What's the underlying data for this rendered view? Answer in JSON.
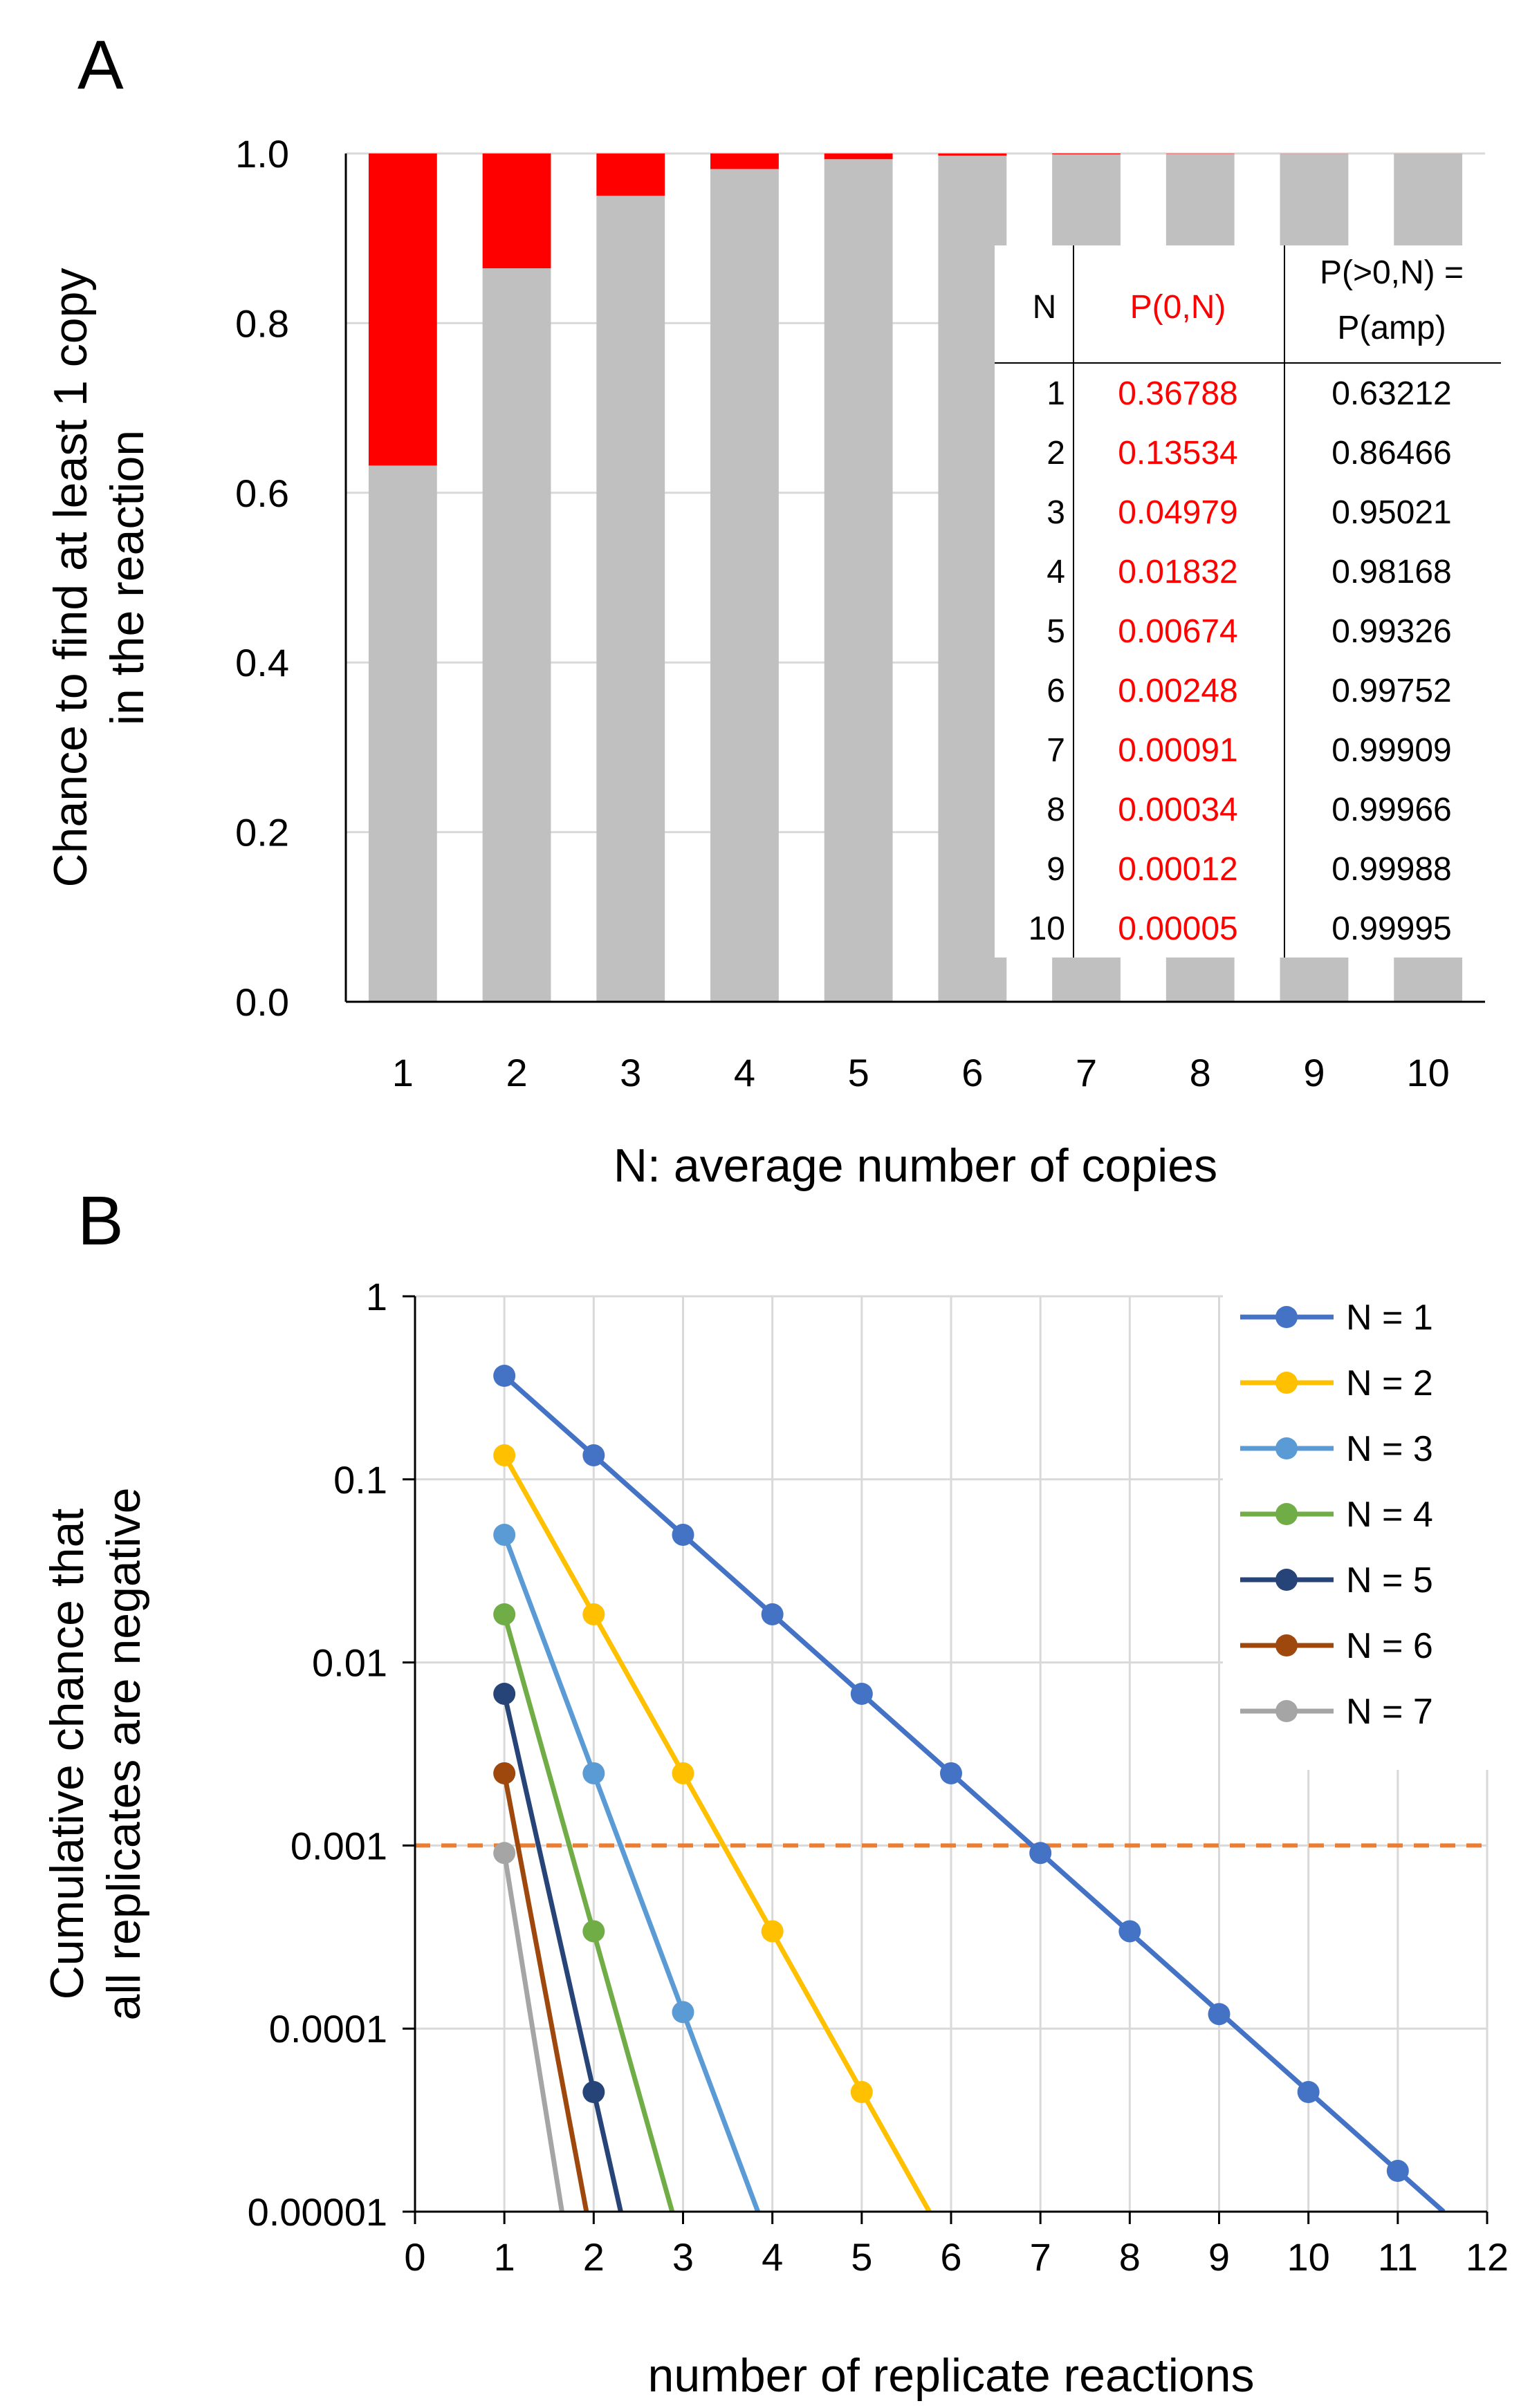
{
  "panels": [
    {
      "letter": "A"
    },
    {
      "letter": "B"
    }
  ],
  "chart_data": [
    {
      "type": "bar",
      "panel": "A",
      "stacked": true,
      "categories": [
        "1",
        "2",
        "3",
        "4",
        "5",
        "6",
        "7",
        "8",
        "9",
        "10"
      ],
      "series": [
        {
          "name": "P(amp)",
          "color": "#c0c0c0",
          "values": [
            0.63212,
            0.86466,
            0.95021,
            0.98168,
            0.99326,
            0.99752,
            0.99909,
            0.99966,
            0.99988,
            0.99995
          ]
        },
        {
          "name": "P(0,N)",
          "color": "#ff0000",
          "values": [
            0.36788,
            0.13534,
            0.04979,
            0.01832,
            0.00674,
            0.00248,
            0.00091,
            0.00034,
            0.00012,
            5e-05
          ]
        }
      ],
      "xlabel": "N: average number of copies",
      "ylabel_lines": [
        "Chance to find at least 1 copy",
        "in the reaction"
      ],
      "ylim": [
        0,
        1
      ],
      "yticks": [
        "0.0",
        "0.2",
        "0.4",
        "0.6",
        "0.8",
        "1.0"
      ],
      "grid": true,
      "table": {
        "headers": [
          "N",
          "P(0,N)",
          [
            "P(>0,N) =",
            "P(amp)"
          ]
        ],
        "rows": [
          [
            "1",
            "0.36788",
            "0.63212"
          ],
          [
            "2",
            "0.13534",
            "0.86466"
          ],
          [
            "3",
            "0.04979",
            "0.95021"
          ],
          [
            "4",
            "0.01832",
            "0.98168"
          ],
          [
            "5",
            "0.00674",
            "0.99326"
          ],
          [
            "6",
            "0.00248",
            "0.99752"
          ],
          [
            "7",
            "0.00091",
            "0.99909"
          ],
          [
            "8",
            "0.00034",
            "0.99966"
          ],
          [
            "9",
            "0.00012",
            "0.99988"
          ],
          [
            "10",
            "0.00005",
            "0.99995"
          ]
        ],
        "placement": "lower-right inside plot"
      }
    },
    {
      "type": "line",
      "panel": "B",
      "yscale": "log",
      "xlabel": "number of replicate reactions",
      "ylabel_lines": [
        "Cumulative chance that",
        "all replicates are negative"
      ],
      "xlim": [
        0,
        12
      ],
      "ylim": [
        1e-05,
        1
      ],
      "xticks": [
        "0",
        "1",
        "2",
        "3",
        "4",
        "5",
        "6",
        "7",
        "8",
        "9",
        "10",
        "11",
        "12"
      ],
      "yticks": [
        {
          "value": 1,
          "label": "1"
        },
        {
          "value": 0.1,
          "label": "0.1"
        },
        {
          "value": 0.01,
          "label": "0.01"
        },
        {
          "value": 0.001,
          "label": "0.001"
        },
        {
          "value": 0.0001,
          "label": "0.0001"
        },
        {
          "value": 1e-05,
          "label": "0.00001"
        }
      ],
      "grid": true,
      "threshold": {
        "value": 0.001,
        "color": "#ed7d31",
        "style": "dashed"
      },
      "legend_position": "top-right",
      "series": [
        {
          "name": "N = 1",
          "N": 1,
          "color": "#4472c4",
          "points": [
            [
              1,
              0.36788
            ],
            [
              2,
              0.13534
            ],
            [
              3,
              0.04979
            ],
            [
              4,
              0.01832
            ],
            [
              5,
              0.00674
            ],
            [
              6,
              0.00248
            ],
            [
              7,
              0.00091
            ],
            [
              8,
              0.00034
            ],
            [
              9,
              0.00012
            ],
            [
              10,
              4.5e-05
            ],
            [
              11,
              1.67e-05
            ]
          ]
        },
        {
          "name": "N = 2",
          "N": 2,
          "color": "#ffc000",
          "points": [
            [
              1,
              0.13534
            ],
            [
              2,
              0.01832
            ],
            [
              3,
              0.00248
            ],
            [
              4,
              0.00034
            ],
            [
              5,
              4.5e-05
            ]
          ]
        },
        {
          "name": "N = 3",
          "N": 3,
          "color": "#5b9bd5",
          "points": [
            [
              1,
              0.04979
            ],
            [
              2,
              0.00248
            ],
            [
              3,
              0.000123
            ]
          ]
        },
        {
          "name": "N = 4",
          "N": 4,
          "color": "#70ad47",
          "points": [
            [
              1,
              0.01832
            ],
            [
              2,
              0.00034
            ]
          ]
        },
        {
          "name": "N = 5",
          "N": 5,
          "color": "#264478",
          "points": [
            [
              1,
              0.00674
            ],
            [
              2,
              4.5e-05
            ]
          ]
        },
        {
          "name": "N = 6",
          "N": 6,
          "color": "#9e480e",
          "points": [
            [
              1,
              0.00248
            ]
          ]
        },
        {
          "name": "N = 7",
          "N": 7,
          "color": "#a5a5a5",
          "points": [
            [
              1,
              0.00091
            ]
          ]
        }
      ]
    }
  ]
}
